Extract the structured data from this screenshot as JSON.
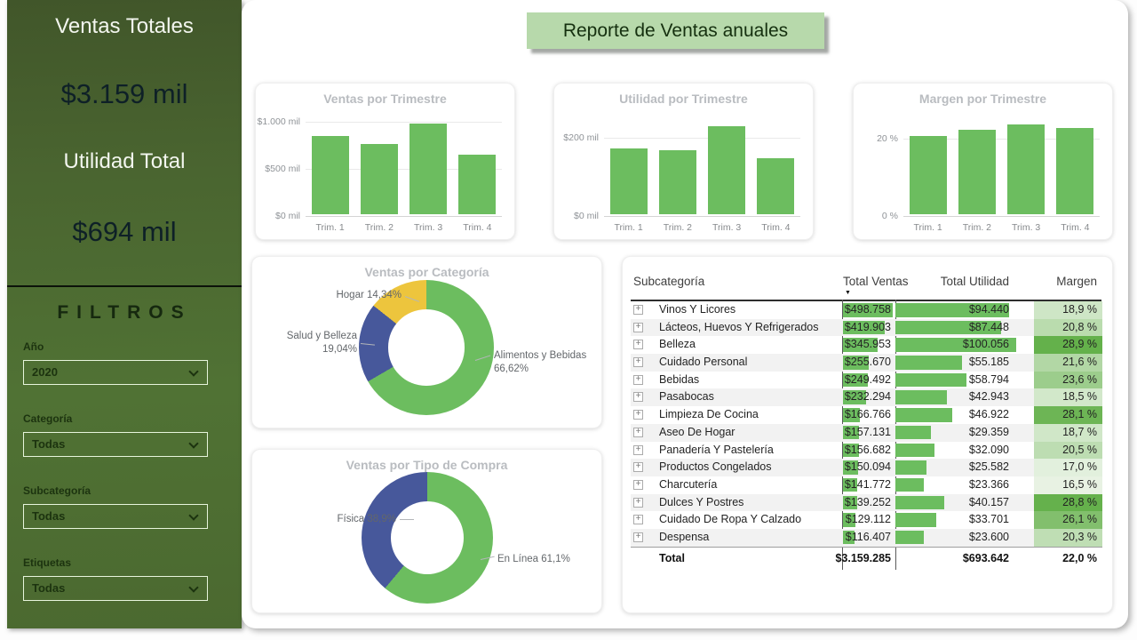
{
  "colors": {
    "green": "#6cbd5f",
    "blue": "#47589b",
    "yellow": "#edc53d",
    "banner_bg": "#b7d9ab",
    "sidebar_green": "#4a6530",
    "kpi_value_text": "#0e2027",
    "card_title_gray": "#b9bcc0",
    "margin_scale_low": "#edf5e9",
    "margin_scale_high": "#63b04a"
  },
  "sidebar": {
    "kpi_ventas": {
      "label": "Ventas Totales",
      "value": "$3.159 mil"
    },
    "kpi_utilidad": {
      "label": "Utilidad Total",
      "value": "$694 mil"
    },
    "filters_title": "FILTROS",
    "filters": [
      {
        "id": "ano",
        "label": "Año",
        "value": "2020"
      },
      {
        "id": "categoria",
        "label": "Categoría",
        "value": "Todas"
      },
      {
        "id": "subcategoria",
        "label": "Subcategoría",
        "value": "Todas"
      },
      {
        "id": "etiquetas",
        "label": "Etiquetas",
        "value": "Todas"
      }
    ]
  },
  "header": {
    "title": "Reporte de Ventas anuales"
  },
  "chart_data": [
    {
      "id": "ventas_trimestre",
      "type": "bar",
      "title": "Ventas por Trimestre",
      "categories": [
        "Trim. 1",
        "Trim. 2",
        "Trim. 3",
        "Trim. 4"
      ],
      "values": [
        825,
        740,
        960,
        634
      ],
      "yticks": [
        {
          "v": 0,
          "label": "$0 mil"
        },
        {
          "v": 500,
          "label": "$500 mil"
        },
        {
          "v": 1000,
          "label": "$1.000 mil"
        }
      ],
      "ylim": [
        0,
        1080
      ],
      "bar_color": "#6cbd5f",
      "grid": true,
      "legend": "none"
    },
    {
      "id": "utilidad_trimestre",
      "type": "bar",
      "title": "Utilidad por Trimestre",
      "categories": [
        "Trim. 1",
        "Trim. 2",
        "Trim. 3",
        "Trim. 4"
      ],
      "values": [
        167,
        162,
        223,
        142
      ],
      "yticks": [
        {
          "v": 0,
          "label": "$0 mil"
        },
        {
          "v": 200,
          "label": "$200 mil"
        }
      ],
      "ylim": [
        0,
        260
      ],
      "bar_color": "#6cbd5f",
      "grid": true,
      "legend": "none"
    },
    {
      "id": "margen_trimestre",
      "type": "bar",
      "title": "Margen por Trimestre",
      "categories": [
        "Trim. 1",
        "Trim. 2",
        "Trim. 3",
        "Trim. 4"
      ],
      "values": [
        20.2,
        21.9,
        23.2,
        22.4
      ],
      "yticks": [
        {
          "v": 0,
          "label": "0 %"
        },
        {
          "v": 20,
          "label": "20 %"
        }
      ],
      "ylim": [
        0,
        26.5
      ],
      "bar_color": "#6cbd5f",
      "grid": true,
      "legend": "none"
    },
    {
      "id": "ventas_categoria",
      "type": "donut",
      "title": "Ventas por Categoría",
      "slices": [
        {
          "name": "Alimentos y Bebidas",
          "pct": 66.62,
          "label_lines": [
            "Alimentos y Bebidas",
            "66,62%"
          ],
          "color": "#6cbd5f",
          "label_side": "right"
        },
        {
          "name": "Salud y Belleza",
          "pct": 19.04,
          "label_lines": [
            "Salud y Belleza",
            "19,04%"
          ],
          "color": "#47589b",
          "label_side": "left"
        },
        {
          "name": "Hogar",
          "pct": 14.34,
          "label_lines": [
            "Hogar 14,34%"
          ],
          "color": "#edc53d",
          "label_side": "top-left"
        }
      ]
    },
    {
      "id": "ventas_tipo_compra",
      "type": "donut",
      "title": "Ventas por Tipo de Compra",
      "slices": [
        {
          "name": "En Línea",
          "pct": 61.1,
          "label_lines": [
            "En Línea 61,1%"
          ],
          "color": "#6cbd5f",
          "label_side": "right"
        },
        {
          "name": "Física",
          "pct": 38.9,
          "label_lines": [
            "Física 38,9%"
          ],
          "color": "#47589b",
          "label_side": "left"
        }
      ]
    }
  ],
  "table": {
    "headers": [
      "Subcategoría",
      "Total Ventas",
      "Total Utilidad",
      "Margen"
    ],
    "sort_column": "Total Ventas",
    "sort_direction": "desc",
    "rows": [
      {
        "name": "Vinos Y Licores",
        "ventas": "$498.758",
        "ventas_num": 498758,
        "utilidad": "$94.440",
        "utilidad_num": 94440,
        "margen": "18,9 %",
        "margen_num": 18.9
      },
      {
        "name": "Lácteos, Huevos Y Refrigerados",
        "ventas": "$419.903",
        "ventas_num": 419903,
        "utilidad": "$87.448",
        "utilidad_num": 87448,
        "margen": "20,8 %",
        "margen_num": 20.8
      },
      {
        "name": "Belleza",
        "ventas": "$345.953",
        "ventas_num": 345953,
        "utilidad": "$100.056",
        "utilidad_num": 100056,
        "margen": "28,9 %",
        "margen_num": 28.9
      },
      {
        "name": "Cuidado Personal",
        "ventas": "$255.670",
        "ventas_num": 255670,
        "utilidad": "$55.185",
        "utilidad_num": 55185,
        "margen": "21,6 %",
        "margen_num": 21.6
      },
      {
        "name": "Bebidas",
        "ventas": "$249.492",
        "ventas_num": 249492,
        "utilidad": "$58.794",
        "utilidad_num": 58794,
        "margen": "23,6 %",
        "margen_num": 23.6
      },
      {
        "name": "Pasabocas",
        "ventas": "$232.294",
        "ventas_num": 232294,
        "utilidad": "$42.943",
        "utilidad_num": 42943,
        "margen": "18,5 %",
        "margen_num": 18.5
      },
      {
        "name": "Limpieza De Cocina",
        "ventas": "$166.766",
        "ventas_num": 166766,
        "utilidad": "$46.922",
        "utilidad_num": 46922,
        "margen": "28,1 %",
        "margen_num": 28.1
      },
      {
        "name": "Aseo De Hogar",
        "ventas": "$157.131",
        "ventas_num": 157131,
        "utilidad": "$29.359",
        "utilidad_num": 29359,
        "margen": "18,7 %",
        "margen_num": 18.7
      },
      {
        "name": "Panadería Y Pastelería",
        "ventas": "$156.682",
        "ventas_num": 156682,
        "utilidad": "$32.090",
        "utilidad_num": 32090,
        "margen": "20,5 %",
        "margen_num": 20.5
      },
      {
        "name": "Productos Congelados",
        "ventas": "$150.094",
        "ventas_num": 150094,
        "utilidad": "$25.582",
        "utilidad_num": 25582,
        "margen": "17,0 %",
        "margen_num": 17.0
      },
      {
        "name": "Charcutería",
        "ventas": "$141.772",
        "ventas_num": 141772,
        "utilidad": "$23.366",
        "utilidad_num": 23366,
        "margen": "16,5 %",
        "margen_num": 16.5
      },
      {
        "name": "Dulces Y Postres",
        "ventas": "$139.252",
        "ventas_num": 139252,
        "utilidad": "$40.157",
        "utilidad_num": 40157,
        "margen": "28,8 %",
        "margen_num": 28.8
      },
      {
        "name": "Cuidado De Ropa Y Calzado",
        "ventas": "$129.112",
        "ventas_num": 129112,
        "utilidad": "$33.701",
        "utilidad_num": 33701,
        "margen": "26,1 %",
        "margen_num": 26.1
      },
      {
        "name": "Despensa",
        "ventas": "$116.407",
        "ventas_num": 116407,
        "utilidad": "$23.600",
        "utilidad_num": 23600,
        "margen": "20,3 %",
        "margen_num": 20.3
      }
    ],
    "total": {
      "name": "Total",
      "ventas": "$3.159.285",
      "utilidad": "$693.642",
      "margen": "22,0 %"
    }
  }
}
